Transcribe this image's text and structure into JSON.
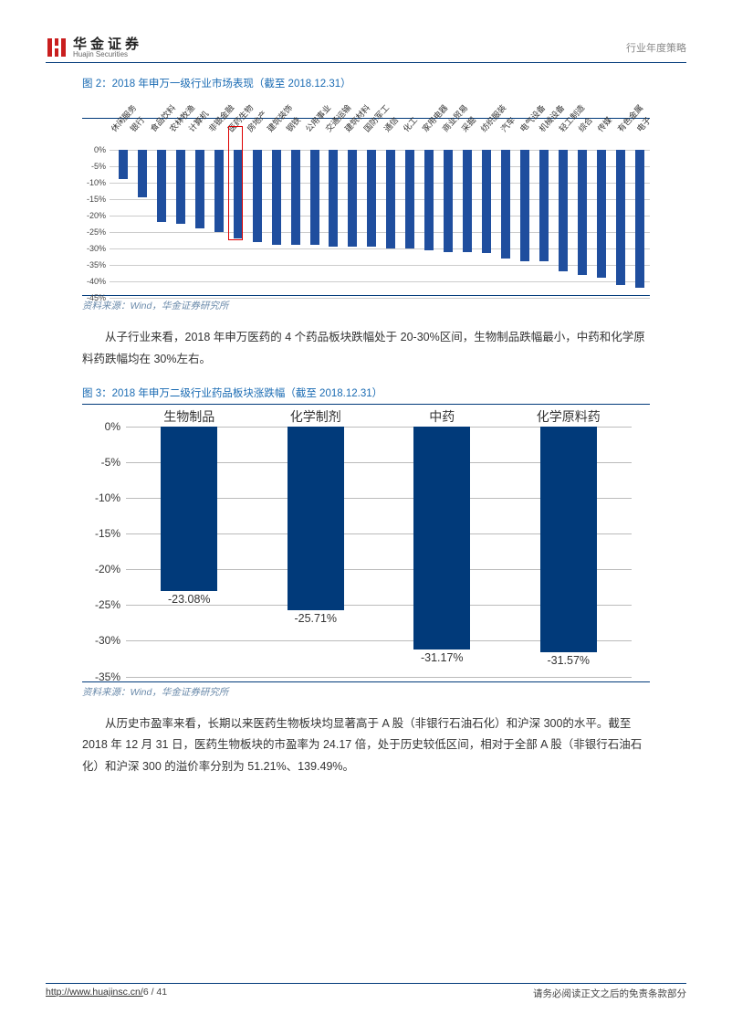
{
  "header": {
    "logo_cn": "华金证券",
    "logo_en": "Huajin Securities",
    "right": "行业年度策略"
  },
  "chart1": {
    "title": "图 2：2018 年申万一级行业市场表现（截至 2018.12.31）",
    "source": "资料来源：Wind，华金证券研究所",
    "ymin": -45,
    "ymax": 0,
    "ystep": 5,
    "categories": [
      "休闲服务",
      "银行",
      "食品饮料",
      "农林牧渔",
      "计算机",
      "非银金融",
      "医药生物",
      "房地产",
      "建筑装饰",
      "钢铁",
      "公用事业",
      "交通运输",
      "建筑材料",
      "国防军工",
      "通信",
      "化工",
      "家用电器",
      "商业贸易",
      "采掘",
      "纺织服装",
      "汽车",
      "电气设备",
      "机械设备",
      "轻工制造",
      "综合",
      "传媒",
      "有色金属",
      "电子"
    ],
    "values": [
      -9,
      -14.5,
      -22,
      -22.5,
      -24,
      -25,
      -27,
      -28,
      -29,
      -29,
      -29,
      -29.5,
      -29.5,
      -29.5,
      -30,
      -30,
      -30.5,
      -31,
      -31,
      -31.5,
      -33,
      -34,
      -34,
      -37,
      -38,
      -39,
      -41,
      -42
    ],
    "highlight_index": 6,
    "bar_color": "#1f4e9e",
    "grid_color": "#cccccc"
  },
  "para1": "从子行业来看，2018 年申万医药的 4 个药品板块跌幅处于 20-30%区间，生物制品跌幅最小，中药和化学原料药跌幅均在 30%左右。",
  "chart2": {
    "title": "图 3：2018 年申万二级行业药品板块涨跌幅（截至 2018.12.31）",
    "source": "资料来源：Wind，华金证券研究所",
    "ymin": -35,
    "ymax": 0,
    "ystep": 5,
    "categories": [
      "生物制品",
      "化学制剂",
      "中药",
      "化学原料药"
    ],
    "values": [
      -23.08,
      -25.71,
      -31.17,
      -31.57
    ],
    "labels": [
      "-23.08%",
      "-25.71%",
      "-31.17%",
      "-31.57%"
    ],
    "bar_color": "#013a7a",
    "grid_color": "#bbbbbb"
  },
  "para2": "从历史市盈率来看，长期以来医药生物板块均显著高于 A 股（非银行石油石化）和沪深 300的水平。截至 2018 年 12 月 31 日，医药生物板块的市盈率为 24.17 倍，处于历史较低区间，相对于全部 A 股（非银行石油石化）和沪深 300 的溢价率分别为 51.21%、139.49%。",
  "footer": {
    "left": "http://www.huajinsc.cn/",
    "page": "6 / 41",
    "right": "请务必阅读正文之后的免责条款部分"
  }
}
